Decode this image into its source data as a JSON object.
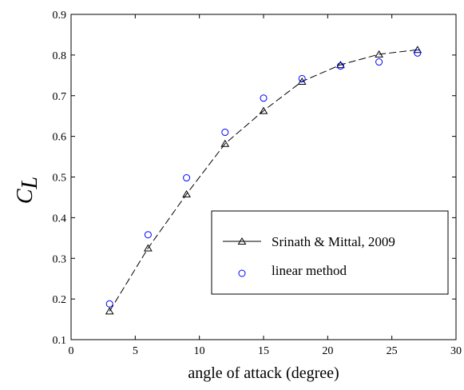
{
  "chart_data": {
    "type": "line",
    "xlabel": "angle of attack (degree)",
    "ylabel": {
      "main": "C",
      "sub": "L"
    },
    "xlim": [
      0,
      30
    ],
    "ylim": [
      0.1,
      0.9
    ],
    "xticks": [
      "0",
      "5",
      "10",
      "15",
      "20",
      "25",
      "30"
    ],
    "yticks": [
      "0.1",
      "0.2",
      "0.3",
      "0.4",
      "0.5",
      "0.6",
      "0.7",
      "0.8",
      "0.9"
    ],
    "grid": false,
    "legend_position": "bottom-right",
    "series": [
      {
        "name": "Srinath & Mittal, 2009",
        "style": "dashed-line-triangle",
        "color": "#000000",
        "x": [
          3,
          6,
          9,
          12,
          15,
          18,
          21,
          24,
          27
        ],
        "y": [
          0.17,
          0.325,
          0.458,
          0.582,
          0.663,
          0.735,
          0.776,
          0.802,
          0.813
        ]
      },
      {
        "name": "linear method",
        "style": "circle-marker",
        "color": "#0000ff",
        "x": [
          3,
          6,
          9,
          12,
          15,
          18,
          21,
          24,
          27
        ],
        "y": [
          0.188,
          0.358,
          0.498,
          0.61,
          0.694,
          0.742,
          0.773,
          0.783,
          0.805
        ]
      }
    ]
  }
}
